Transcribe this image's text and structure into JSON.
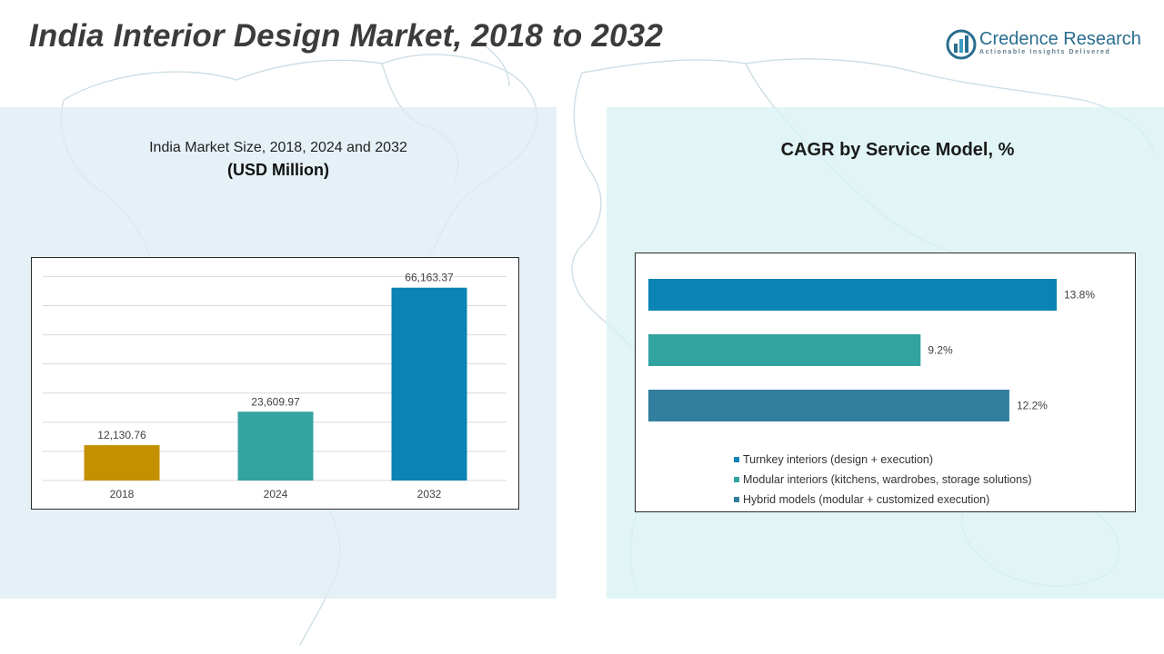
{
  "header": {
    "title": "India Interior Design Market, 2018 to 2032",
    "brand_name": "Credence Research",
    "brand_tagline": "Actionable Insights Delivered"
  },
  "left_panel": {
    "subtitle": "India Market Size, 2018, 2024 and 2032",
    "unit": "(USD Million)"
  },
  "right_panel": {
    "title": "CAGR by Service Model, %"
  },
  "colors": {
    "bar_2018": "#c49000",
    "bar_2024": "#33a3a0",
    "bar_2032": "#0b83b4",
    "turnkey": "#0b83b4",
    "modular": "#33a3a0",
    "hybrid": "#317e9e"
  },
  "chart_data": [
    {
      "type": "bar",
      "title": "India Market Size, 2018, 2024 and 2032",
      "ylabel": "USD Million",
      "categories": [
        "2018",
        "2024",
        "2032"
      ],
      "values": [
        12130.76,
        23609.97,
        66163.37
      ],
      "value_labels": [
        "12,130.76",
        "23,609.97",
        "66,163.37"
      ],
      "ylim": [
        0,
        72000
      ],
      "grid": true
    },
    {
      "type": "bar",
      "orientation": "horizontal",
      "title": "CAGR by Service Model, %",
      "categories": [
        "Turnkey interiors (design + execution)",
        "Modular interiors (kitchens, wardrobes, storage solutions)",
        "Hybrid models (modular + customized execution)"
      ],
      "values": [
        13.8,
        9.2,
        12.2
      ],
      "value_labels": [
        "13.8%",
        "9.2%",
        "12.2%"
      ],
      "xlim": [
        0,
        15
      ],
      "legend": "bottom"
    }
  ]
}
